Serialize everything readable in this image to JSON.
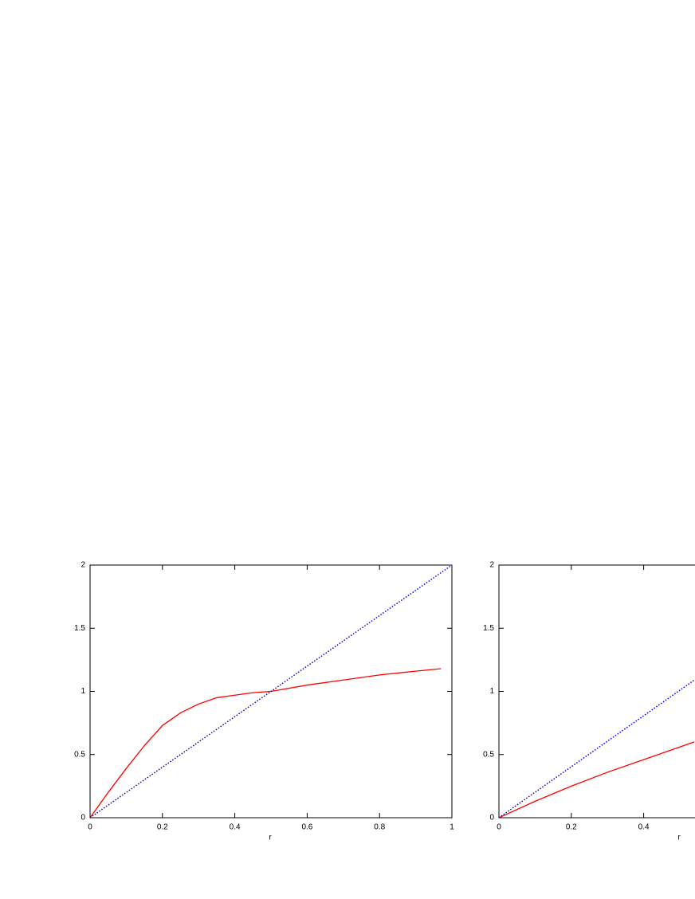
{
  "chart_data": [
    {
      "type": "line",
      "xlabel": "r",
      "xlim": [
        0,
        1
      ],
      "ylim": [
        0,
        2
      ],
      "xticks": [
        0,
        0.2,
        0.4,
        0.6,
        0.8,
        1
      ],
      "yticks": [
        0,
        0.5,
        1,
        1.5,
        2
      ],
      "series": [
        {
          "color": "#ff0000",
          "style": "solid",
          "x": [
            0,
            0.05,
            0.1,
            0.15,
            0.2,
            0.25,
            0.3,
            0.35,
            0.4,
            0.45,
            0.5,
            0.6,
            0.7,
            0.8,
            0.9,
            0.97
          ],
          "values": [
            0,
            0.2,
            0.39,
            0.57,
            0.73,
            0.83,
            0.9,
            0.95,
            0.97,
            0.99,
            1.0,
            1.05,
            1.09,
            1.13,
            1.16,
            1.18
          ]
        },
        {
          "color": "#0000ff",
          "style": "dotted",
          "x": [
            0,
            1
          ],
          "values": [
            0,
            2
          ]
        }
      ]
    },
    {
      "type": "line",
      "xlabel": "r",
      "xlim": [
        0,
        1
      ],
      "ylim": [
        0,
        2
      ],
      "xticks": [
        0,
        0.2,
        0.4
      ],
      "yticks": [
        0,
        0.5,
        1,
        1.5,
        2
      ],
      "series": [
        {
          "color": "#ff0000",
          "style": "solid",
          "x": [
            0,
            0.1,
            0.2,
            0.3,
            0.4,
            0.54
          ],
          "values": [
            0,
            0.13,
            0.25,
            0.36,
            0.46,
            0.6
          ]
        },
        {
          "color": "#0000ff",
          "style": "dotted",
          "x": [
            0,
            0.54
          ],
          "values": [
            0,
            1.09
          ]
        }
      ]
    }
  ]
}
